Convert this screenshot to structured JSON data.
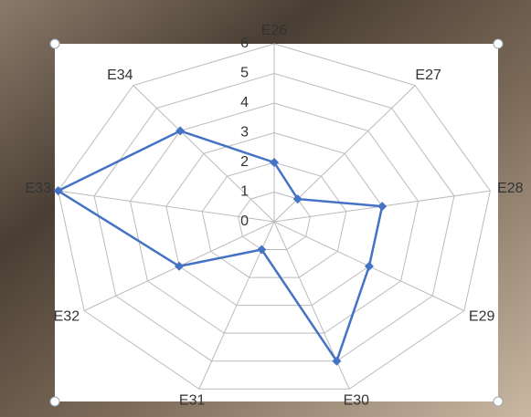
{
  "chart_data": {
    "type": "radar",
    "categories": [
      "E26",
      "E27",
      "E28",
      "E29",
      "E30",
      "E31",
      "E32",
      "E33",
      "E34"
    ],
    "values": [
      2,
      1,
      3,
      3,
      5,
      1,
      3,
      6,
      4
    ],
    "color": "#4472c4",
    "ylim": [
      0,
      6
    ],
    "yticks": [
      0,
      1,
      2,
      3,
      4,
      5,
      6
    ],
    "grid": true
  }
}
